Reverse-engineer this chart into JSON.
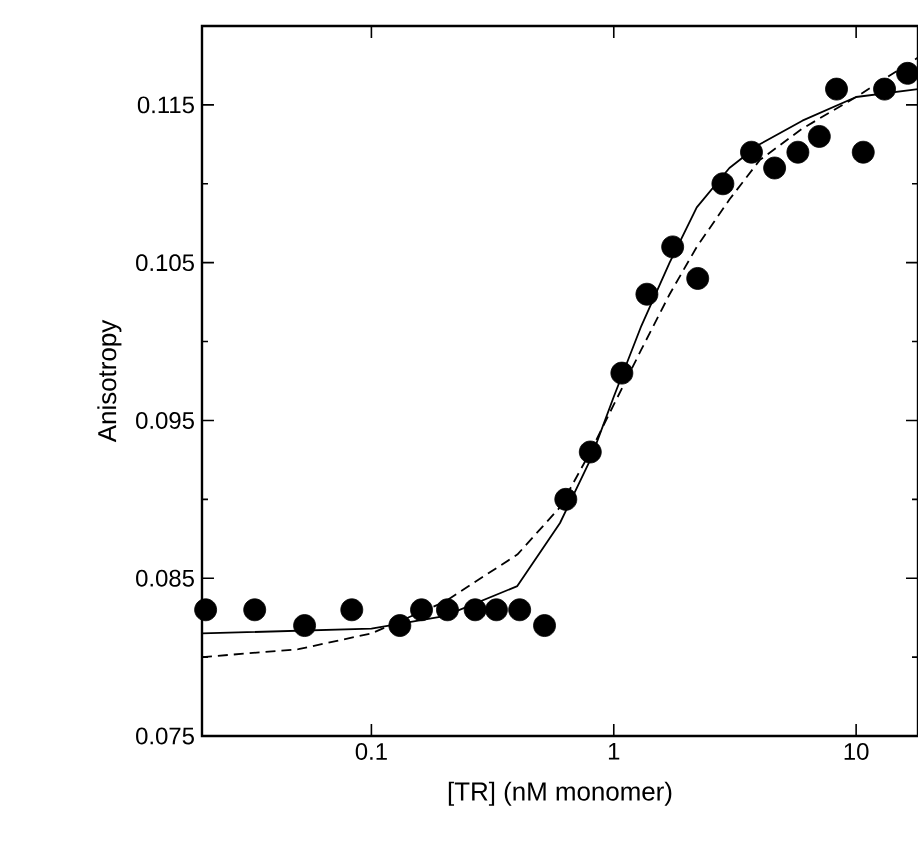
{
  "chart_data": {
    "type": "scatter",
    "xlabel": "[TR] (nM monomer)",
    "ylabel": "Anisotropy",
    "log": "x",
    "grid": false,
    "marker": "circle",
    "xlim": [
      0.02,
      18
    ],
    "ylim": [
      0.075,
      0.12
    ],
    "xticks": [
      0.1,
      1,
      10
    ],
    "yticks": [
      0.075,
      0.085,
      0.095,
      0.105,
      0.115
    ],
    "series": [
      {
        "color": "#000000",
        "x": [
          0.0207,
          0.033,
          0.053,
          0.083,
          0.131,
          0.161,
          0.206,
          0.268,
          0.328,
          0.409,
          0.518,
          0.634,
          0.8,
          1.08,
          1.37,
          1.75,
          2.22,
          2.82,
          3.7,
          4.61,
          5.75,
          7.05,
          8.3,
          10.7,
          13.1,
          16.3
        ],
        "values": [
          0.083,
          0.083,
          0.082,
          0.083,
          0.082,
          0.083,
          0.083,
          0.083,
          0.083,
          0.083,
          0.082,
          0.09,
          0.093,
          0.098,
          0.103,
          0.106,
          0.104,
          0.11,
          0.112,
          0.111,
          0.112,
          0.113,
          0.116,
          0.112,
          0.116,
          0.117
        ]
      },
      {
        "type": "line",
        "marker": "none",
        "line_style": "solid",
        "color": "#000000",
        "x": [
          0.02,
          0.1,
          0.2,
          0.4,
          0.6,
          0.8,
          1.0,
          1.3,
          1.7,
          2.2,
          3,
          4,
          6,
          10,
          18
        ],
        "values": [
          0.0815,
          0.0818,
          0.0826,
          0.0845,
          0.0885,
          0.0925,
          0.0965,
          0.101,
          0.105,
          0.1085,
          0.111,
          0.1125,
          0.114,
          0.1155,
          0.116
        ]
      },
      {
        "type": "line",
        "marker": "none",
        "line_style": "dashed",
        "color": "#000000",
        "x": [
          0.02,
          0.05,
          0.1,
          0.2,
          0.4,
          0.6,
          0.8,
          1.0,
          1.3,
          1.7,
          2.2,
          3,
          4,
          6,
          10,
          18
        ],
        "values": [
          0.08,
          0.0805,
          0.0815,
          0.0835,
          0.0865,
          0.0895,
          0.093,
          0.096,
          0.0995,
          0.103,
          0.106,
          0.109,
          0.1115,
          0.1135,
          0.1155,
          0.118
        ]
      }
    ]
  }
}
